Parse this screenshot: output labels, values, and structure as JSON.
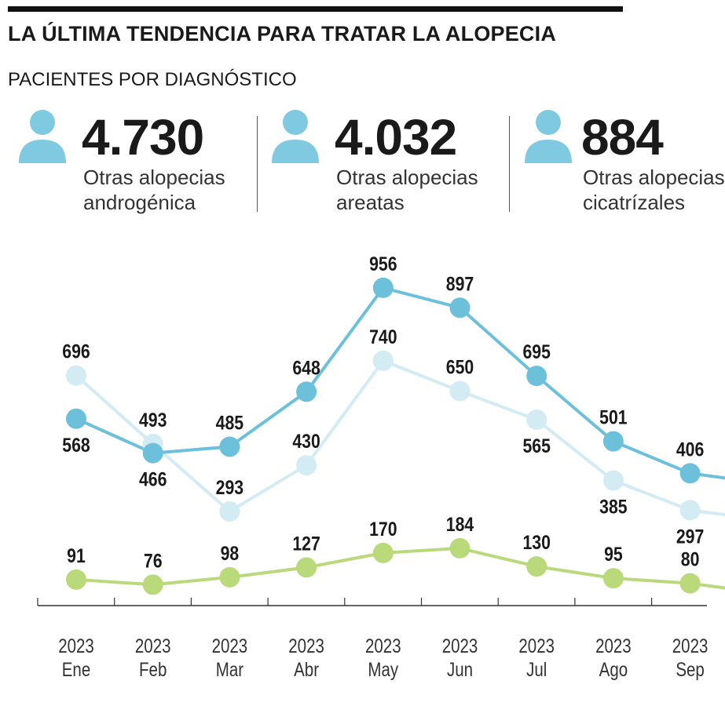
{
  "header": {
    "title": "LA ÚLTIMA TENDENCIA PARA TRATAR LA ALOPECIA",
    "subtitle": "PACIENTES POR DIAGNÓSTICO"
  },
  "stats": [
    {
      "value": "4.730",
      "line1": "Otras alopecias",
      "line2": "androgénica",
      "icon": "person-icon"
    },
    {
      "value": "4.032",
      "line1": "Otras alopecias",
      "line2": "areatas",
      "icon": "person-icon"
    },
    {
      "value": "884",
      "line1": "Otras alopecias",
      "line2": "cicatrízales",
      "icon": "person-icon"
    }
  ],
  "colors": {
    "androgenica": "#6cc0da",
    "areatas": "#d3ebf3",
    "cicatrizales": "#b9d97a",
    "icon": "#7fcae0",
    "axis": "#333333"
  },
  "chart_data": {
    "type": "line",
    "categories": [
      "2023 Ene",
      "2023 Feb",
      "2023 Mar",
      "2023 Abr",
      "2023 May",
      "2023 Jun",
      "2023 Jul",
      "2023 Ago",
      "2023 Sep"
    ],
    "tick_year": [
      "2023",
      "2023",
      "2023",
      "2023",
      "2023",
      "2023",
      "2023",
      "2023",
      "2023"
    ],
    "tick_month": [
      "Ene",
      "Feb",
      "Mar",
      "Abr",
      "May",
      "Jun",
      "Jul",
      "Ago",
      "Sep"
    ],
    "series": [
      {
        "key": "androgenica",
        "values": [
          568,
          466,
          485,
          648,
          956,
          897,
          695,
          501,
          406
        ],
        "label_pos": [
          "below",
          "below",
          "above",
          "above",
          "above",
          "above",
          "above",
          "above",
          "above"
        ]
      },
      {
        "key": "areatas",
        "values": [
          696,
          493,
          293,
          430,
          740,
          650,
          565,
          385,
          297
        ],
        "label_pos": [
          "above",
          "above",
          "above",
          "above",
          "above",
          "above",
          "below",
          "below",
          "below"
        ]
      },
      {
        "key": "cicatrizales",
        "values": [
          91,
          76,
          98,
          127,
          170,
          184,
          130,
          95,
          80
        ],
        "label_pos": [
          "above",
          "above",
          "above",
          "above",
          "above",
          "above",
          "above",
          "above",
          "above"
        ]
      }
    ],
    "ylim": [
      0,
      1000
    ],
    "grid": false,
    "legend": "none"
  }
}
